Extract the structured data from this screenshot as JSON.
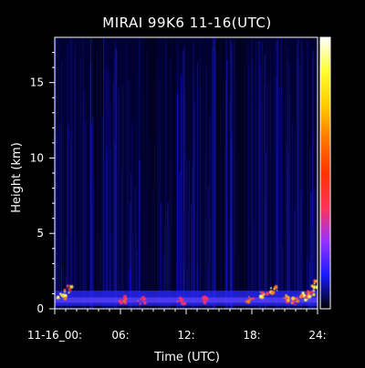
{
  "chart_data": {
    "type": "heatmap",
    "title": "MIRAI 99K6 11-16(UTC)",
    "xlabel": "Time (UTC)",
    "ylabel": "Height (km)",
    "xlim": [
      0,
      24
    ],
    "ylim": [
      0,
      18
    ],
    "x_ticks": [
      {
        "value": 0,
        "label": "11-16_00:"
      },
      {
        "value": 6,
        "label": "06:"
      },
      {
        "value": 12,
        "label": "12:"
      },
      {
        "value": 18,
        "label": "18:"
      },
      {
        "value": 24,
        "label": "24:"
      }
    ],
    "y_ticks": [
      {
        "value": 0,
        "label": "0"
      },
      {
        "value": 5,
        "label": "5"
      },
      {
        "value": 10,
        "label": "10"
      },
      {
        "value": 15,
        "label": "15"
      }
    ],
    "colorbar": {
      "stops": [
        "#000000",
        "#1a1aff",
        "#9933ff",
        "#ff3355",
        "#ff3300",
        "#ff7700",
        "#ffcc00",
        "#ffff33",
        "#ffffff"
      ]
    },
    "background_colors": {
      "plot": "#000033",
      "figure": "#000000"
    },
    "low_level_echo": {
      "height_range_km": [
        0.2,
        1.2
      ],
      "features": [
        {
          "time": 0.6,
          "height": 0.8,
          "intensity": 0.95
        },
        {
          "time": 1.2,
          "height": 1.3,
          "intensity": 0.9
        },
        {
          "time": 6.2,
          "height": 0.6,
          "intensity": 0.8
        },
        {
          "time": 7.9,
          "height": 0.5,
          "intensity": 0.6
        },
        {
          "time": 11.5,
          "height": 0.5,
          "intensity": 0.5
        },
        {
          "time": 13.8,
          "height": 0.6,
          "intensity": 0.6
        },
        {
          "time": 17.8,
          "height": 0.6,
          "intensity": 0.7
        },
        {
          "time": 19.1,
          "height": 0.9,
          "intensity": 0.85
        },
        {
          "time": 20.0,
          "height": 1.2,
          "intensity": 0.95
        },
        {
          "time": 21.0,
          "height": 0.7,
          "intensity": 0.8
        },
        {
          "time": 22.0,
          "height": 0.5,
          "intensity": 0.8
        },
        {
          "time": 22.8,
          "height": 0.8,
          "intensity": 0.9
        },
        {
          "time": 23.3,
          "height": 1.0,
          "intensity": 0.85
        },
        {
          "time": 23.7,
          "height": 1.6,
          "intensity": 0.9
        }
      ]
    }
  }
}
